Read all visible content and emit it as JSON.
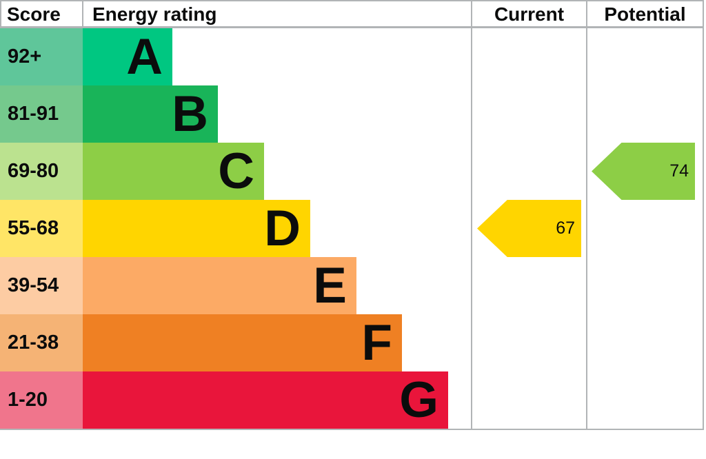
{
  "header": {
    "score": "Score",
    "energy_rating": "Energy rating",
    "current": "Current",
    "potential": "Potential"
  },
  "bands": [
    {
      "letter": "A",
      "score": "92+",
      "bar_color": "#00c781",
      "score_bg": "#5fc69a"
    },
    {
      "letter": "B",
      "score": "81-91",
      "bar_color": "#19b459",
      "score_bg": "#75c98d"
    },
    {
      "letter": "C",
      "score": "69-80",
      "bar_color": "#8dce46",
      "score_bg": "#bbe28f"
    },
    {
      "letter": "D",
      "score": "55-68",
      "bar_color": "#ffd500",
      "score_bg": "#ffe566"
    },
    {
      "letter": "E",
      "score": "39-54",
      "bar_color": "#fcaa65",
      "score_bg": "#fdcca3"
    },
    {
      "letter": "F",
      "score": "21-38",
      "bar_color": "#ef8023",
      "score_bg": "#f5b375"
    },
    {
      "letter": "G",
      "score": "1-20",
      "bar_color": "#e9153b",
      "score_bg": "#f0758c"
    }
  ],
  "current_arrow": {
    "value": "67",
    "color": "#ffd500"
  },
  "potential_arrow": {
    "value": "74",
    "color": "#8dce46"
  },
  "colors": {
    "border": "#b1b4b6",
    "text": "#0b0c0c",
    "background": "#ffffff"
  },
  "chart_data": {
    "type": "epc_energy_rating_chart",
    "title": "Energy rating",
    "columns": [
      "Score",
      "Energy rating",
      "Current",
      "Potential"
    ],
    "bands": [
      {
        "letter": "A",
        "score_range": "92+",
        "color": "#00c781"
      },
      {
        "letter": "B",
        "score_range": "81-91",
        "color": "#19b459"
      },
      {
        "letter": "C",
        "score_range": "69-80",
        "color": "#8dce46"
      },
      {
        "letter": "D",
        "score_range": "55-68",
        "color": "#ffd500"
      },
      {
        "letter": "E",
        "score_range": "39-54",
        "color": "#fcaa65"
      },
      {
        "letter": "F",
        "score_range": "21-38",
        "color": "#ef8023"
      },
      {
        "letter": "G",
        "score_range": "1-20",
        "color": "#e9153b"
      }
    ],
    "current": {
      "value": 67,
      "band": "D"
    },
    "potential": {
      "value": 74,
      "band": "C"
    },
    "legend_position": "none",
    "grid": false
  }
}
